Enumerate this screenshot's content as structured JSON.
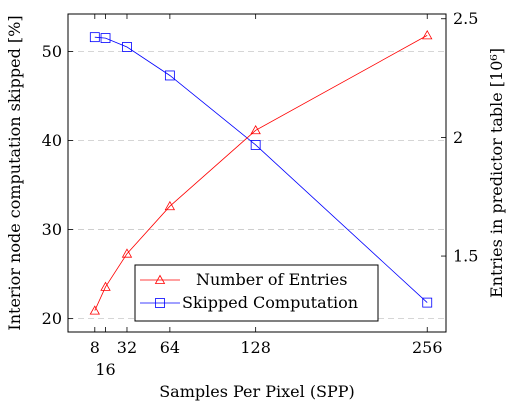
{
  "chart_data": {
    "type": "line",
    "x": [
      8,
      16,
      32,
      64,
      128,
      256
    ],
    "xlabel": "Samples Per Pixel (SPP)",
    "xlim": [
      -12,
      270
    ],
    "x_ticks": [
      8,
      16,
      32,
      64,
      128,
      256
    ],
    "y_left": {
      "label": "Interior node computation skipped [%]",
      "lim": [
        18.5,
        54.2
      ],
      "ticks": [
        20,
        30,
        40,
        50
      ]
    },
    "y_right": {
      "label": "Entries in predictor table [10⁶]",
      "lim": [
        1.18,
        2.52
      ],
      "ticks": [
        1.5,
        2,
        2.5
      ],
      "tick_labels": [
        "1.5",
        "2",
        "2.5"
      ]
    },
    "grid": "horizontal dashed at left-axis ticks",
    "legend_position": "bottom-center",
    "series": [
      {
        "name": "Skipped Computation",
        "axis": "left",
        "color": "#0000ff",
        "marker": "square",
        "values": [
          51.6,
          51.5,
          50.5,
          47.3,
          39.5,
          21.8
        ]
      },
      {
        "name": "Number of Entries",
        "axis": "right",
        "color": "#ff0000",
        "marker": "triangle",
        "values": [
          1.27,
          1.37,
          1.51,
          1.71,
          2.03,
          2.43
        ]
      }
    ]
  }
}
